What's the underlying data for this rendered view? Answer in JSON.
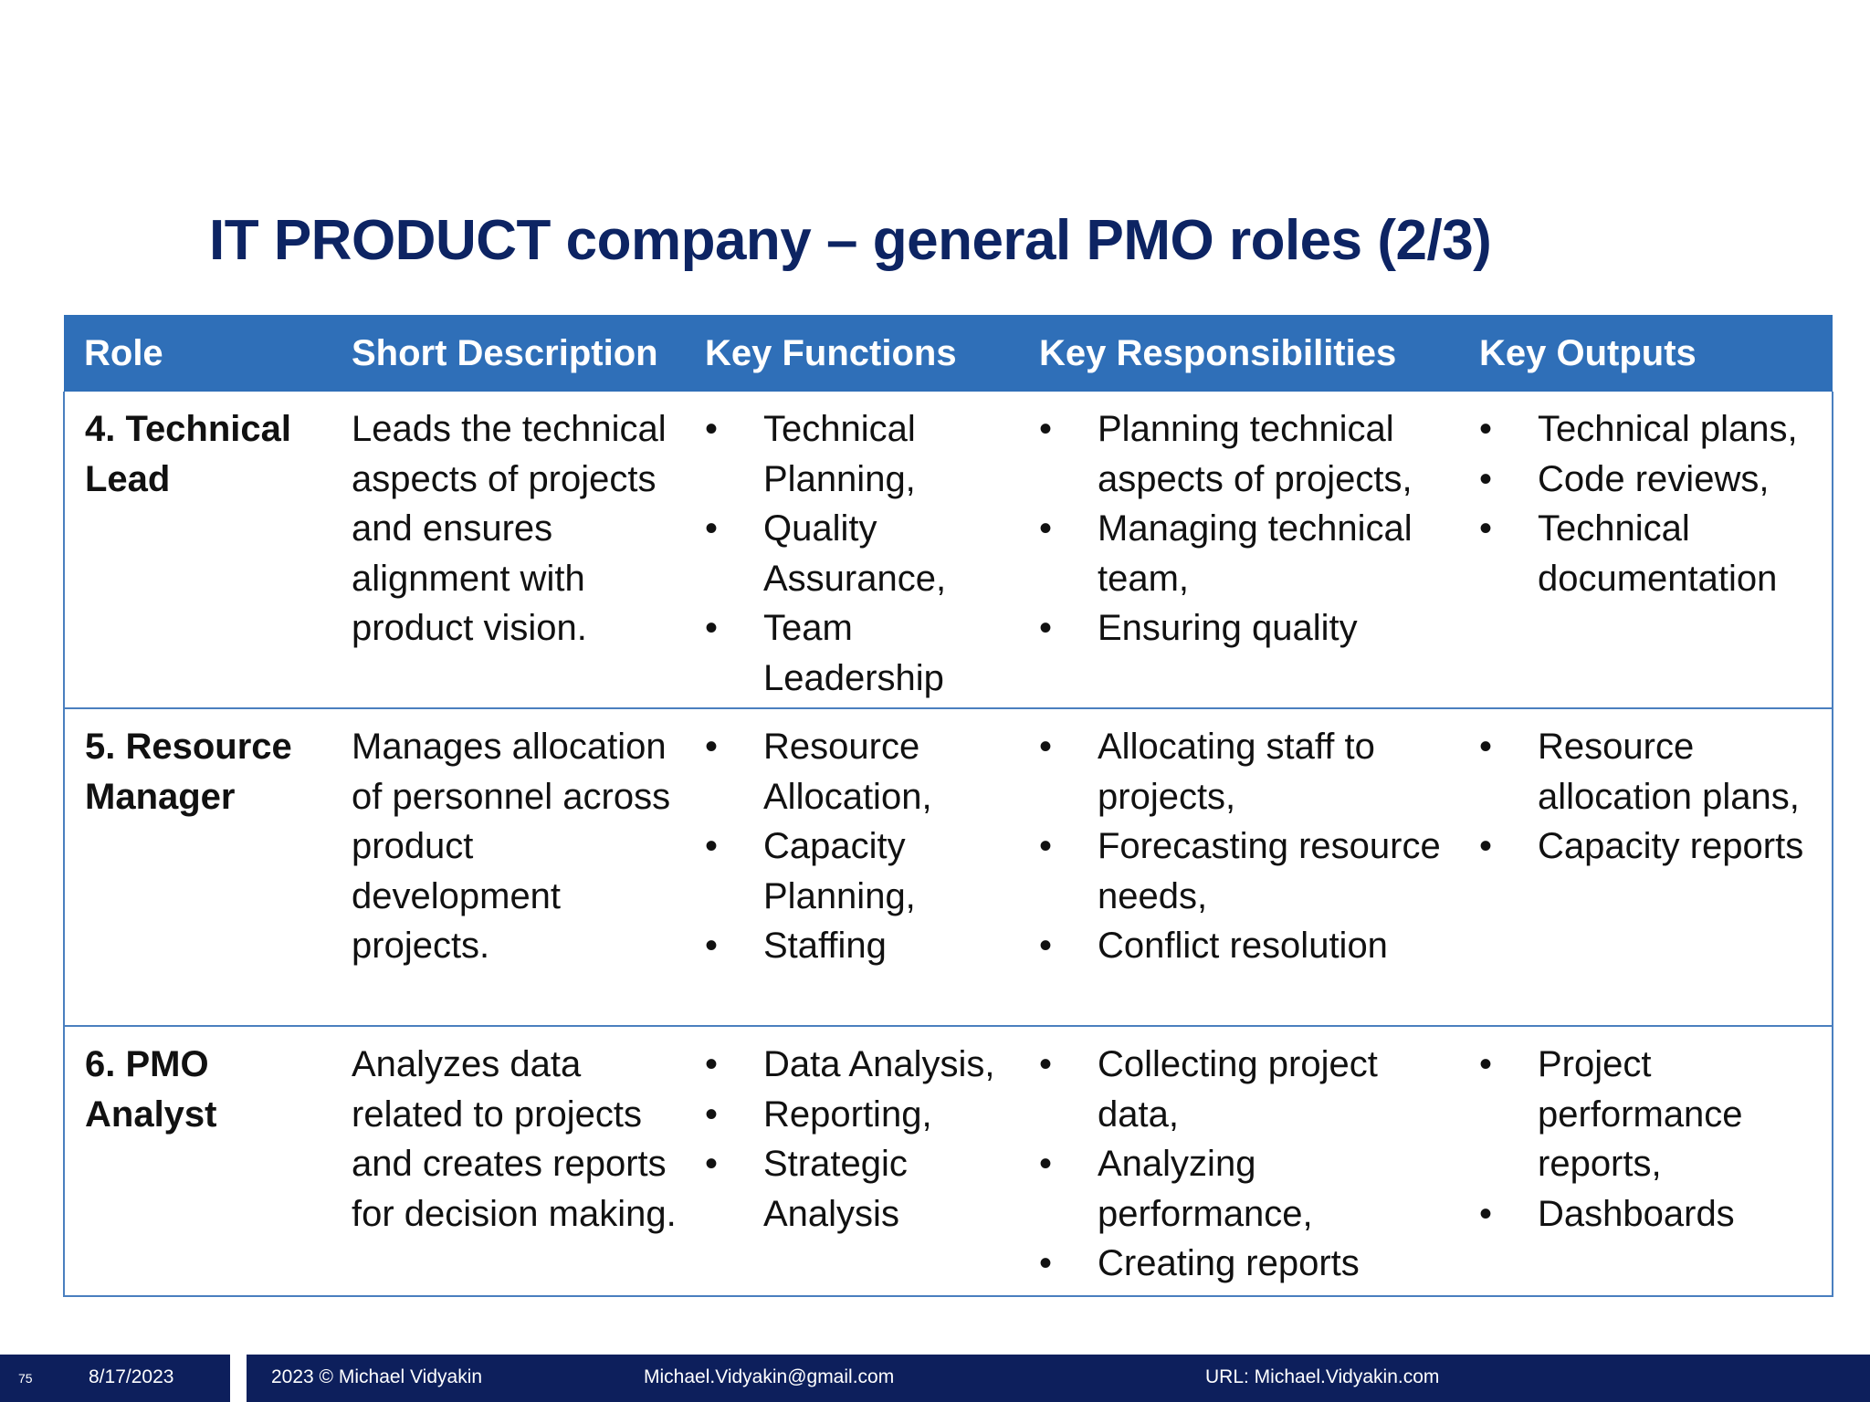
{
  "title": "IT PRODUCT company – general PMO roles (2/3)",
  "table": {
    "headers": [
      "Role",
      "Short Description",
      "Key Functions",
      "Key Responsibilities",
      "Key Outputs"
    ],
    "rows": [
      {
        "role": "4. Technical Lead",
        "description": "Leads the technical aspects of projects and ensures alignment with product vision.",
        "functions": [
          "Technical Planning,",
          "Quality Assurance,",
          "Team Leadership"
        ],
        "responsibilities": [
          "Planning technical aspects of projects,",
          "Managing technical team,",
          "Ensuring quality"
        ],
        "outputs": [
          "Technical plans,",
          "Code reviews,",
          "Technical documentation"
        ]
      },
      {
        "role": "5. Resource Manager",
        "description": "Manages allocation of personnel across product development projects.",
        "functions": [
          "Resource Allocation,",
          "Capacity Planning,",
          "Staffing"
        ],
        "responsibilities": [
          "Allocating staff to projects,",
          "Forecasting resource needs,",
          "Conflict resolution"
        ],
        "outputs": [
          "Resource allocation plans,",
          "Capacity reports"
        ]
      },
      {
        "role": "6. PMO Analyst",
        "description": "Analyzes data related to projects and creates reports for decision making.",
        "functions": [
          "Data Analysis,",
          "Reporting,",
          "Strategic Analysis"
        ],
        "responsibilities": [
          "Collecting project data,",
          "Analyzing performance,",
          "Creating reports"
        ],
        "outputs": [
          "Project performance reports,",
          "Dashboards"
        ]
      }
    ]
  },
  "footer": {
    "slide_number": "75",
    "date": "8/17/2023",
    "copyright": "2023 © Michael Vidyakin",
    "email": "Michael.Vidyakin@gmail.com",
    "url": "URL: Michael.Vidyakin.com"
  },
  "colors": {
    "title": "#0d2463",
    "header_bg": "#2f6fb8",
    "border": "#4a7fbf",
    "footer_bg": "#0d1f5c"
  }
}
